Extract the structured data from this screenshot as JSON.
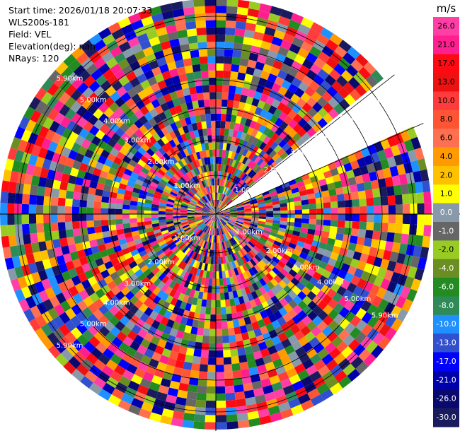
{
  "header": {
    "start_time": "Start time: 2026/01/18 20:07:33",
    "instrument": "WLS200s-181",
    "field": "Field: VEL",
    "elevation": "Elevation(deg): nan",
    "nrays": "NRays: 120"
  },
  "chart_data": {
    "type": "heatmap",
    "projection": "polar",
    "field": "VEL",
    "n_rays": 120,
    "missing_sector": "wedge of missing rays on the upper-right side",
    "range_ring_labels": [
      "1.00km",
      "2.00km",
      "3.00km",
      "4.00km",
      "5.00km",
      "5.90km"
    ],
    "colorbar": {
      "unit": "m/s",
      "ticks": [
        "26.0",
        "21.0",
        "17.0",
        "13.0",
        "10.0",
        "8.0",
        "6.0",
        "4.0",
        "2.0",
        "1.0",
        "0.0",
        "-1.0",
        "-2.0",
        "-4.0",
        "-6.0",
        "-8.0",
        "-10.0",
        "-13.0",
        "-17.0",
        "-21.0",
        "-26.0",
        "-30.0"
      ],
      "colors_top_to_bottom": [
        "#ff3ea6",
        "#ff1f8e",
        "#ff0a12",
        "#ee1111",
        "#ff3b3b",
        "#ff5535",
        "#ff7050",
        "#ff9a00",
        "#ffc000",
        "#ffff00",
        "#8899aa",
        "#666666",
        "#99cc22",
        "#6b8e23",
        "#228b22",
        "#2e8b57",
        "#1e90ff",
        "#3050d0",
        "#0000ff",
        "#0000aa",
        "#0a0a6e",
        "#1a1a5e"
      ]
    }
  }
}
